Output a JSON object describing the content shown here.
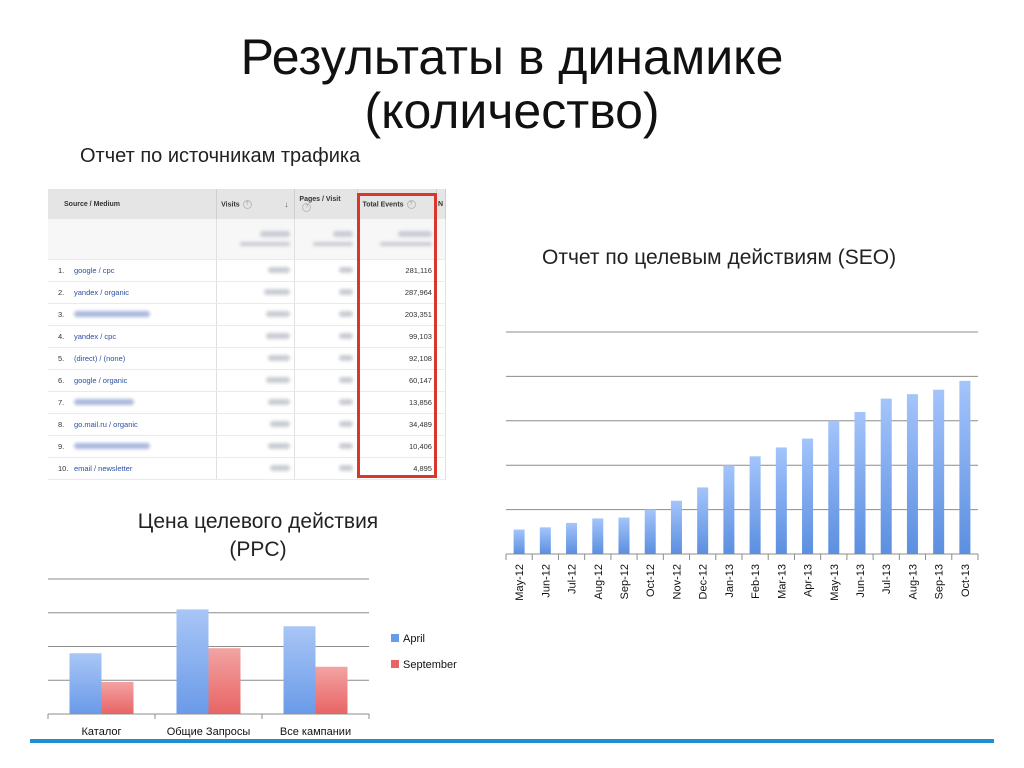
{
  "slide": {
    "title_line1": "Результаты в динамике",
    "title_line2": "(количество)"
  },
  "traffic_report": {
    "caption": "Отчет по источникам трафика",
    "columns": {
      "source": "Source / Medium",
      "visits": "Visits",
      "pages_per_visit": "Pages / Visit",
      "total_events": "Total Events",
      "next": "N"
    },
    "rows": [
      {
        "n": "1.",
        "source": "google / cpc",
        "total_events": "281,116"
      },
      {
        "n": "2.",
        "source": "yandex / organic",
        "total_events": "287,964"
      },
      {
        "n": "3.",
        "source": "",
        "total_events": "203,351"
      },
      {
        "n": "4.",
        "source": "yandex / cpc",
        "total_events": "99,103"
      },
      {
        "n": "5.",
        "source": "(direct) / (none)",
        "total_events": "92,108"
      },
      {
        "n": "6.",
        "source": "google / organic",
        "total_events": "60,147"
      },
      {
        "n": "7.",
        "source": "",
        "total_events": "13,856"
      },
      {
        "n": "8.",
        "source": "go.mail.ru / organic",
        "total_events": "34,489"
      },
      {
        "n": "9.",
        "source": "",
        "total_events": "10,406"
      },
      {
        "n": "10.",
        "source": "email / newsletter",
        "total_events": "4,895"
      }
    ]
  },
  "seo_report": {
    "caption": "Отчет по целевым действиям (SEO)"
  },
  "ppc_report": {
    "caption_line1": "Цена целевого действия",
    "caption_line2": "(PPC)"
  },
  "chart_data": [
    {
      "id": "seo",
      "type": "bar",
      "categories": [
        "May-12",
        "Jun-12",
        "Jul-12",
        "Aug-12",
        "Sep-12",
        "Oct-12",
        "Nov-12",
        "Dec-12",
        "Jan-13",
        "Feb-13",
        "Mar-13",
        "Apr-13",
        "May-13",
        "Jun-13",
        "Jul-13",
        "Aug-13",
        "Sep-13",
        "Oct-13"
      ],
      "values": [
        0.55,
        0.6,
        0.7,
        0.8,
        0.82,
        1.0,
        1.2,
        1.5,
        2.0,
        2.2,
        2.4,
        2.6,
        3.0,
        3.2,
        3.5,
        3.6,
        3.7,
        3.9
      ],
      "ylim": [
        0,
        5
      ],
      "grid": true,
      "color": "#5b8fe0"
    },
    {
      "id": "ppc",
      "type": "bar",
      "categories": [
        "Каталог",
        "Общие Запросы",
        "Все кампании"
      ],
      "series": [
        {
          "name": "April",
          "values": [
            1.8,
            3.1,
            2.6
          ],
          "color": "#6a9ae8"
        },
        {
          "name": "September",
          "values": [
            0.95,
            1.95,
            1.4
          ],
          "color": "#e86464"
        }
      ],
      "ylim": [
        0,
        4
      ],
      "grid": true,
      "legend": "right"
    }
  ]
}
